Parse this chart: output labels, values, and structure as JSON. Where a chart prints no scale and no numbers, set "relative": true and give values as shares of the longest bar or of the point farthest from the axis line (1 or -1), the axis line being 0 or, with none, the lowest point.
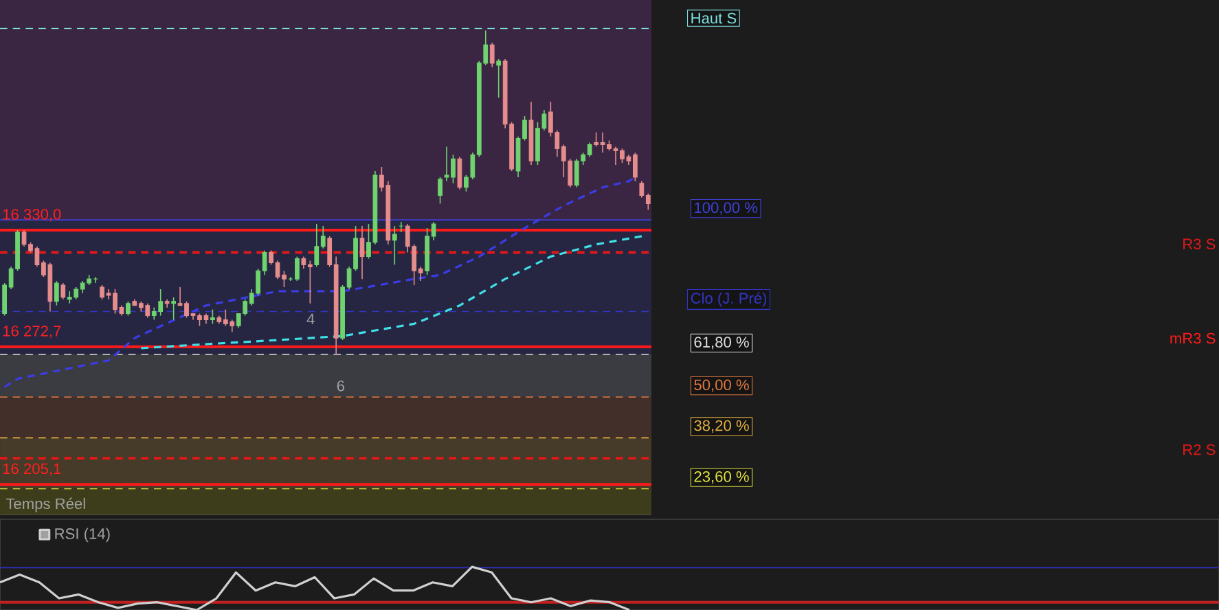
{
  "chart_data": [
    {
      "type": "candlestick",
      "categories": [
        null,
        null,
        null,
        null,
        null,
        null,
        null,
        null,
        null,
        null,
        null,
        null,
        null,
        null,
        null,
        null,
        null,
        null,
        null,
        null,
        null,
        null,
        null,
        null,
        null,
        null,
        null,
        null,
        null,
        null,
        null,
        null,
        null,
        null,
        null,
        null,
        null,
        null,
        null,
        null,
        null,
        null,
        null,
        null,
        null,
        null,
        null,
        null,
        null,
        null,
        null,
        null,
        null,
        null,
        null,
        null,
        null,
        null,
        null,
        null,
        null,
        null,
        null,
        null,
        null,
        null,
        null,
        null,
        null,
        null,
        null,
        null,
        null,
        null,
        null,
        null,
        null,
        null,
        null,
        null,
        null,
        null,
        null,
        null,
        null,
        null,
        null,
        null,
        null,
        null,
        null,
        null,
        null,
        null,
        null,
        null,
        null,
        null,
        null,
        null
      ],
      "ohlc": [
        [
          16289,
          16304,
          16288,
          16303
        ],
        [
          16302,
          16312,
          16301,
          16311
        ],
        [
          16311,
          16330,
          16310,
          16329
        ],
        [
          16329,
          16330,
          16322,
          16323
        ],
        [
          16323,
          16324,
          16319,
          16320
        ],
        [
          16321,
          16322,
          16312,
          16313
        ],
        [
          16314,
          16315,
          16307,
          16308
        ],
        [
          16313,
          16314,
          16290,
          16295
        ],
        [
          16295,
          16305,
          16293,
          16304
        ],
        [
          16303,
          16304,
          16296,
          16297
        ],
        [
          16296,
          16300,
          16294,
          16297
        ],
        [
          16297,
          16302,
          16296,
          16301
        ],
        [
          16301,
          16305,
          16299,
          16304
        ],
        [
          16304,
          16308,
          16303,
          16306
        ],
        [
          16306,
          16307,
          16304,
          16306
        ],
        [
          16302,
          16303,
          16296,
          16297
        ],
        [
          16299,
          16301,
          16296,
          16298
        ],
        [
          16299,
          16301,
          16289,
          16291
        ],
        [
          16292,
          16293,
          16288,
          16289
        ],
        [
          16289,
          16295,
          16288,
          16294
        ],
        [
          16295,
          16296,
          16293,
          16293
        ],
        [
          16294,
          16295,
          16290,
          16292
        ],
        [
          16293,
          16294,
          16287,
          16288
        ],
        [
          16288,
          16292,
          16286,
          16290
        ],
        [
          16290,
          16301,
          16288,
          16295
        ],
        [
          16295,
          16296,
          16292,
          16294
        ],
        [
          16294,
          16297,
          16286,
          16295
        ],
        [
          16294,
          16302,
          16293,
          16293
        ],
        [
          16294,
          16295,
          16287,
          16288
        ],
        [
          16289,
          16289,
          16286,
          16288
        ],
        [
          16288,
          16289,
          16283,
          16286
        ],
        [
          16288,
          16289,
          16284,
          16286
        ],
        [
          16286,
          16291,
          16284,
          16287
        ],
        [
          16287,
          16288,
          16284,
          16285
        ],
        [
          16286,
          16291,
          16283,
          16284
        ],
        [
          16285,
          16286,
          16280,
          16283
        ],
        [
          16283,
          16289,
          16282,
          16289
        ],
        [
          16289,
          16296,
          16288,
          16295
        ],
        [
          16294,
          16301,
          16293,
          16299
        ],
        [
          16299,
          16311,
          16298,
          16310
        ],
        [
          16310,
          16320,
          16308,
          16319
        ],
        [
          16319,
          16320,
          16313,
          16314
        ],
        [
          16314,
          16315,
          16306,
          16307
        ],
        [
          16308,
          16310,
          16302,
          16306
        ],
        [
          16306,
          16307,
          16305,
          16306
        ],
        [
          16306,
          16317,
          16305,
          16316
        ],
        [
          16316,
          16317,
          16311,
          16313
        ],
        [
          16313,
          16315,
          16294,
          16312
        ],
        [
          16313,
          16333,
          16312,
          16322
        ],
        [
          16322,
          16332,
          16321,
          16327
        ],
        [
          16326,
          16327,
          16312,
          16313
        ],
        [
          16313,
          16317,
          16269,
          16277
        ],
        [
          16277,
          16303,
          16276,
          16302
        ],
        [
          16302,
          16312,
          16301,
          16311
        ],
        [
          16311,
          16332,
          16310,
          16326
        ],
        [
          16326,
          16332,
          16306,
          16317
        ],
        [
          16317,
          16333,
          16316,
          16324
        ],
        [
          16324,
          16359,
          16323,
          16357
        ],
        [
          16357,
          16361,
          16349,
          16351
        ],
        [
          16352,
          16354,
          16323,
          16325
        ],
        [
          16325,
          16332,
          16313,
          16328
        ],
        [
          16332,
          16334,
          16329,
          16332
        ],
        [
          16332,
          16333,
          16319,
          16322
        ],
        [
          16322,
          16323,
          16303,
          16310
        ],
        [
          16311,
          16312,
          16305,
          16309
        ],
        [
          16310,
          16331,
          16308,
          16327
        ],
        [
          16327,
          16334,
          16325,
          16333
        ],
        [
          16347,
          16356,
          16343,
          16355
        ],
        [
          16356,
          16371,
          16354,
          16357
        ],
        [
          16356,
          16367,
          16353,
          16365
        ],
        [
          16365,
          16366,
          16350,
          16351
        ],
        [
          16351,
          16357,
          16349,
          16356
        ],
        [
          16356,
          16368,
          16355,
          16367
        ],
        [
          16367,
          16413,
          16366,
          16412
        ],
        [
          16412,
          16428,
          16411,
          16421
        ],
        [
          16421,
          16422,
          16410,
          16412
        ],
        [
          16411,
          16414,
          16395,
          16413
        ],
        [
          16413,
          16414,
          16380,
          16382
        ],
        [
          16382,
          16383,
          16359,
          16360
        ],
        [
          16359,
          16376,
          16356,
          16375
        ],
        [
          16375,
          16386,
          16374,
          16384
        ],
        [
          16384,
          16393,
          16362,
          16364
        ],
        [
          16364,
          16383,
          16362,
          16380
        ],
        [
          16380,
          16389,
          16379,
          16387
        ],
        [
          16388,
          16393,
          16376,
          16378
        ],
        [
          16378,
          16379,
          16366,
          16370
        ],
        [
          16371,
          16372,
          16356,
          16364
        ],
        [
          16364,
          16365,
          16351,
          16352
        ],
        [
          16352,
          16365,
          16351,
          16364
        ],
        [
          16364,
          16368,
          16362,
          16367
        ],
        [
          16367,
          16373,
          16366,
          16372
        ],
        [
          16373,
          16378,
          16371,
          16372
        ],
        [
          16373,
          16378,
          16368,
          16372
        ],
        [
          16372,
          16374,
          16369,
          16370
        ],
        [
          16370,
          16371,
          16362,
          16369
        ],
        [
          16369,
          16370,
          16363,
          16365
        ],
        [
          16366,
          16367,
          16362,
          16364
        ],
        [
          16367,
          16368,
          16354,
          16356
        ],
        [
          16353,
          16354,
          16346,
          16347
        ],
        [
          16347,
          16348,
          16340,
          16343
        ]
      ],
      "colors": [
        "#6fd36f",
        "#6fd36f",
        "#6fd36f",
        "#e58d8d",
        "#e58d8d",
        "#e58d8d",
        "#e58d8d",
        "#e58d8d",
        "#6fd36f",
        "#e58d8d",
        "#6fd36f",
        "#6fd36f",
        "#6fd36f",
        "#6fd36f",
        "#6fd36f",
        "#e58d8d",
        "#e58d8d",
        "#e58d8d",
        "#e58d8d",
        "#6fd36f",
        "#e58d8d",
        "#e58d8d",
        "#e58d8d",
        "#6fd36f",
        "#6fd36f",
        "#e58d8d",
        "#6fd36f",
        "#e58d8d",
        "#e58d8d",
        "#e58d8d",
        "#e58d8d",
        "#e58d8d",
        "#6fd36f",
        "#e58d8d",
        "#e58d8d",
        "#e58d8d",
        "#6fd36f",
        "#6fd36f",
        "#6fd36f",
        "#6fd36f",
        "#6fd36f",
        "#e58d8d",
        "#e58d8d",
        "#e58d8d",
        "#6fd36f",
        "#6fd36f",
        "#e58d8d",
        "#e58d8d",
        "#6fd36f",
        "#6fd36f",
        "#e58d8d",
        "#e58d8d",
        "#6fd36f",
        "#6fd36f",
        "#6fd36f",
        "#e58d8d",
        "#6fd36f",
        "#6fd36f",
        "#e58d8d",
        "#e58d8d",
        "#6fd36f",
        "#6fd36f",
        "#e58d8d",
        "#e58d8d",
        "#e58d8d",
        "#6fd36f",
        "#6fd36f",
        "#6fd36f",
        "#6fd36f",
        "#6fd36f",
        "#e58d8d",
        "#6fd36f",
        "#6fd36f",
        "#6fd36f",
        "#6fd36f",
        "#e58d8d",
        "#6fd36f",
        "#e58d8d",
        "#e58d8d",
        "#6fd36f",
        "#6fd36f",
        "#e58d8d",
        "#6fd36f",
        "#6fd36f",
        "#e58d8d",
        "#e58d8d",
        "#e58d8d",
        "#e58d8d",
        "#6fd36f",
        "#6fd36f",
        "#6fd36f",
        "#e58d8d",
        "#e58d8d",
        "#e58d8d",
        "#e58d8d",
        "#e58d8d",
        "#e58d8d",
        "#e58d8d",
        "#e58d8d",
        "#e58d8d"
      ],
      "series": [
        {
          "type": "line",
          "color": "#3c3ce6",
          "line_style": "dashed",
          "values": [
            16253,
            null,
            16257,
            null,
            null,
            null,
            null,
            null,
            null,
            null,
            null,
            null,
            null,
            null,
            null,
            null,
            16266,
            null,
            null,
            null,
            16277,
            null,
            null,
            null,
            null,
            null,
            null,
            null,
            null,
            null,
            null,
            16293,
            null,
            null,
            null,
            null,
            null,
            null,
            null,
            null,
            null,
            null,
            16300,
            null,
            null,
            null,
            null,
            null,
            null,
            null,
            null,
            null,
            16300,
            null,
            null,
            null,
            null,
            null,
            null,
            null,
            null,
            null,
            null,
            16306,
            null,
            null,
            null,
            16308,
            null,
            null,
            null,
            null,
            null,
            16317,
            null,
            null,
            null,
            null,
            null,
            null,
            16331,
            null,
            null,
            null,
            null,
            null,
            16342,
            null,
            null,
            null,
            null,
            null,
            16351,
            null,
            null,
            null,
            16354,
            16356,
            null,
            null
          ]
        },
        {
          "type": "line",
          "color": "#40e0e8",
          "line_style": "dashed",
          "values": [
            null,
            null,
            null,
            null,
            null,
            null,
            null,
            null,
            null,
            null,
            null,
            null,
            null,
            null,
            null,
            null,
            null,
            null,
            null,
            null,
            null,
            16272,
            null,
            null,
            null,
            null,
            null,
            null,
            null,
            null,
            null,
            16274,
            null,
            null,
            null,
            null,
            null,
            null,
            null,
            null,
            null,
            null,
            16276,
            null,
            null,
            null,
            null,
            null,
            null,
            null,
            null,
            null,
            16278,
            null,
            null,
            null,
            null,
            null,
            null,
            null,
            null,
            null,
            null,
            16284,
            null,
            null,
            null,
            null,
            null,
            null,
            16293,
            null,
            null,
            null,
            null,
            null,
            null,
            16306,
            null,
            null,
            null,
            null,
            null,
            null,
            16317,
            null,
            null,
            null,
            null,
            null,
            null,
            16323,
            null,
            null,
            null,
            null,
            null,
            null,
            16327,
            null
          ]
        }
      ],
      "ylim": [
        16190,
        16443
      ],
      "yticks": [
        {
          "value": 16330.0,
          "label": "16 330,0"
        },
        {
          "value": 16272.7,
          "label": "16 272,7"
        },
        {
          "value": 16205.1,
          "label": "16 205,1"
        }
      ],
      "tick_labels": "y",
      "bands": [
        {
          "axis": "y",
          "from": 16335,
          "to": 16443,
          "color": "#3a2642"
        },
        {
          "axis": "y",
          "from": 16269,
          "to": 16335,
          "color": "#262642"
        },
        {
          "axis": "y",
          "from": 16248,
          "to": 16269,
          "color": "#3a3c42"
        },
        {
          "axis": "y",
          "from": 16228,
          "to": 16248,
          "color": "#432f2a"
        },
        {
          "axis": "y",
          "from": 16203,
          "to": 16228,
          "color": "#463a28"
        },
        {
          "axis": "y",
          "from": 16190,
          "to": 16203,
          "color": "#3d3d1c"
        }
      ],
      "ref_lines": [
        {
          "axis": "y",
          "value": 16330.0,
          "color": "#ff1a1a"
        },
        {
          "axis": "y",
          "value": 16319,
          "label": "R3 S",
          "color": "#e01818",
          "line_style": "dashed"
        },
        {
          "axis": "y",
          "value": 16272.7,
          "label": "mR3 S",
          "color": "#ff1a1a"
        },
        {
          "axis": "y",
          "value": 16218,
          "label": "R2 S",
          "color": "#e01818",
          "line_style": "dashed"
        },
        {
          "axis": "y",
          "value": 16205.1,
          "color": "#ff1a1a"
        },
        {
          "axis": "y",
          "value": 16429,
          "label": "Haut S",
          "color": "#7fe0e0",
          "line_style": "dashed"
        },
        {
          "axis": "y",
          "value": 16290,
          "label": "Clo (J. Pré)",
          "color": "#3434c8",
          "line_style": "dashed"
        },
        {
          "axis": "y",
          "value": 16335,
          "color": "#4040d8"
        },
        {
          "axis": "y",
          "value": 16269,
          "color": "#e0e0e0",
          "line_style": "dashed"
        },
        {
          "axis": "y",
          "value": 16248,
          "color": "#e07840",
          "line_style": "dashed"
        },
        {
          "axis": "y",
          "value": 16228,
          "color": "#e0b040",
          "line_style": "dashed"
        },
        {
          "axis": "y",
          "value": 16203,
          "color": "#e0e040",
          "line_style": "dashed"
        }
      ],
      "annotations": [
        "Temps Réel",
        "4",
        "6",
        "100,00 %",
        "61,80 %",
        "50,00 %",
        "38,20 %",
        "23,60 %"
      ]
    },
    {
      "type": "line",
      "relative": true,
      "categories": [
        null,
        null,
        null,
        null,
        null,
        null,
        null,
        null,
        null,
        null,
        null,
        null,
        null,
        null,
        null,
        null,
        null,
        null,
        null,
        null,
        null,
        null,
        null,
        null,
        null,
        null,
        null,
        null,
        null,
        null,
        null,
        null,
        null
      ],
      "series": [
        {
          "name": "RSI (14)",
          "color": "#d0d0d0",
          "values": [
            0.64,
            0.82,
            0.64,
            0.27,
            0.36,
            0.18,
            0.05,
            0.15,
            0.18,
            0.09,
            0,
            0.27,
            0.87,
            0.45,
            0.64,
            0.55,
            0.76,
            0.27,
            0.36,
            0.73,
            0.45,
            0.45,
            0.64,
            0.55,
            1,
            0.87,
            0.27,
            0.18,
            0.27,
            0.09,
            0.22,
            0.18,
            0
          ]
        }
      ],
      "legend": "top left",
      "ref_lines": [
        {
          "axis": "y",
          "value": 0.98,
          "color": "#3030c0"
        },
        {
          "axis": "y",
          "value": 0.18,
          "color": "#c02020"
        }
      ]
    }
  ]
}
